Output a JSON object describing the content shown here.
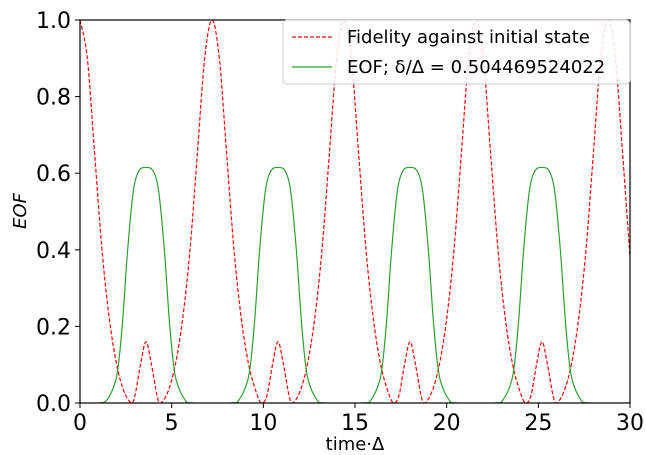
{
  "chart_data": {
    "type": "line",
    "xlabel": "time·Δ",
    "ylabel": "EOF",
    "xlim": [
      0,
      30
    ],
    "ylim": [
      0,
      1
    ],
    "x_ticks": [
      0,
      5,
      10,
      15,
      20,
      25,
      30
    ],
    "y_ticks": [
      0.0,
      0.2,
      0.4,
      0.6,
      0.8,
      1.0
    ],
    "x_tick_labels": [
      "0",
      "5",
      "10",
      "15",
      "20",
      "25",
      "30"
    ],
    "y_tick_labels": [
      "0.0",
      "0.2",
      "0.4",
      "0.6",
      "0.8",
      "1.0"
    ],
    "grid": false,
    "legend_position": "top-right",
    "series": [
      {
        "name": "Fidelity against initial state",
        "color": "#ff0000",
        "style": "dashed",
        "x": [
          0,
          0.4,
          0.8,
          1.2,
          1.6,
          2.0,
          2.4,
          2.8,
          3.0,
          3.3,
          3.6,
          3.9,
          4.2,
          4.4,
          4.8,
          5.2,
          5.6,
          6.0,
          6.4,
          6.8,
          7.2,
          7.6,
          8.0,
          8.4,
          8.8,
          9.2,
          9.6,
          9.9,
          10.2,
          10.5,
          10.8,
          11.1,
          11.4,
          11.6,
          12.0,
          12.4,
          12.8,
          13.2,
          13.6,
          14.0,
          14.4,
          14.8,
          15.2,
          15.6,
          16.0,
          16.4,
          16.8,
          17.1,
          17.4,
          17.7,
          18.0,
          18.3,
          18.6,
          18.8,
          19.2,
          19.6,
          20.0,
          20.4,
          20.8,
          21.2,
          21.6,
          22.0,
          22.4,
          22.8,
          23.2,
          23.6,
          24.0,
          24.3,
          24.6,
          24.9,
          25.2,
          25.5,
          25.8,
          26.0,
          26.4,
          26.8,
          27.2,
          27.6,
          28.0,
          28.4,
          28.8,
          29.2,
          29.6,
          30.0
        ],
        "y": [
          1.0,
          0.9,
          0.65,
          0.4,
          0.22,
          0.1,
          0.03,
          0.0,
          0.02,
          0.1,
          0.16,
          0.1,
          0.02,
          0.0,
          0.03,
          0.1,
          0.22,
          0.4,
          0.65,
          0.9,
          1.0,
          0.9,
          0.65,
          0.4,
          0.22,
          0.1,
          0.03,
          0.0,
          0.02,
          0.1,
          0.16,
          0.1,
          0.02,
          0.0,
          0.03,
          0.1,
          0.22,
          0.4,
          0.65,
          0.9,
          1.0,
          0.9,
          0.65,
          0.4,
          0.22,
          0.1,
          0.03,
          0.0,
          0.02,
          0.1,
          0.16,
          0.1,
          0.02,
          0.0,
          0.03,
          0.1,
          0.22,
          0.4,
          0.65,
          0.9,
          1.0,
          0.9,
          0.65,
          0.4,
          0.22,
          0.1,
          0.03,
          0.0,
          0.02,
          0.1,
          0.16,
          0.1,
          0.02,
          0.0,
          0.03,
          0.1,
          0.22,
          0.4,
          0.65,
          0.9,
          1.0,
          0.9,
          0.65,
          0.38
        ]
      },
      {
        "name": "EOF; δ/Δ = 0.504469524022",
        "color": "#2ca02c",
        "style": "solid",
        "x": [
          0,
          1.0,
          1.5,
          2.0,
          2.3,
          2.6,
          2.9,
          3.2,
          3.6,
          4.0,
          4.3,
          4.6,
          4.9,
          5.2,
          5.7,
          6.2,
          8.2,
          8.7,
          9.2,
          9.5,
          9.8,
          10.1,
          10.4,
          10.8,
          11.2,
          11.5,
          11.8,
          12.1,
          12.4,
          12.9,
          13.4,
          15.4,
          15.9,
          16.4,
          16.7,
          17.0,
          17.3,
          17.6,
          18.0,
          18.4,
          18.7,
          19.0,
          19.3,
          19.6,
          20.1,
          20.6,
          22.6,
          23.1,
          23.6,
          23.9,
          24.2,
          24.5,
          24.8,
          25.2,
          25.6,
          25.9,
          26.2,
          26.5,
          26.8,
          27.3,
          27.8,
          30.0
        ],
        "y": [
          0.0,
          0.0,
          0.01,
          0.07,
          0.2,
          0.4,
          0.55,
          0.605,
          0.615,
          0.605,
          0.55,
          0.4,
          0.2,
          0.07,
          0.01,
          0.0,
          0.0,
          0.01,
          0.07,
          0.2,
          0.4,
          0.55,
          0.605,
          0.615,
          0.605,
          0.55,
          0.4,
          0.2,
          0.07,
          0.01,
          0.0,
          0.0,
          0.01,
          0.07,
          0.2,
          0.4,
          0.55,
          0.605,
          0.615,
          0.605,
          0.55,
          0.4,
          0.2,
          0.07,
          0.01,
          0.0,
          0.0,
          0.01,
          0.07,
          0.2,
          0.4,
          0.55,
          0.605,
          0.615,
          0.605,
          0.55,
          0.4,
          0.2,
          0.07,
          0.01,
          0.0,
          0.0
        ]
      }
    ]
  }
}
